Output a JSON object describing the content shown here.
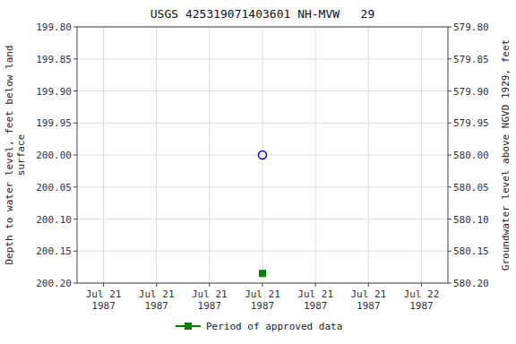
{
  "chart_data": {
    "type": "scatter",
    "title": "USGS 425319071403601 NH-MVW   29",
    "y_label": "Depth to water level, feet below land\nsurface",
    "y2_label": "Groundwater level above NGVD 1929, feet",
    "categories": [
      "Jul 21\n1987",
      "Jul 21\n1987",
      "Jul 21\n1987",
      "Jul 21\n1987",
      "Jul 21\n1987",
      "Jul 21\n1987",
      "Jul 22\n1987"
    ],
    "series": [
      {
        "color": "#0000bb",
        "marker": "circle-open",
        "line_style": "none",
        "values": [
          null,
          null,
          null,
          200.0,
          null,
          null,
          null
        ]
      },
      {
        "name": "Period of approved data",
        "color": "#008000",
        "marker": "square",
        "line_style": "none",
        "values": [
          null,
          null,
          null,
          200.185,
          null,
          null,
          null
        ]
      }
    ],
    "ylim": [
      200.2,
      199.8
    ],
    "yticks": [
      {
        "value": 199.8,
        "label": "199.80"
      },
      {
        "value": 199.85,
        "label": "199.85"
      },
      {
        "value": 199.9,
        "label": "199.90"
      },
      {
        "value": 199.95,
        "label": "199.95"
      },
      {
        "value": 200.0,
        "label": "200.00"
      },
      {
        "value": 200.05,
        "label": "200.05"
      },
      {
        "value": 200.1,
        "label": "200.10"
      },
      {
        "value": 200.15,
        "label": "200.15"
      },
      {
        "value": 200.2,
        "label": "200.20"
      }
    ],
    "y2lim": [
      580.2,
      579.8
    ],
    "y2ticks": [
      {
        "value": 580.2,
        "label": "580.20"
      },
      {
        "value": 580.15,
        "label": "580.15"
      },
      {
        "value": 580.1,
        "label": "580.10"
      },
      {
        "value": 580.05,
        "label": "580.05"
      },
      {
        "value": 580.0,
        "label": "580.00"
      },
      {
        "value": 579.95,
        "label": "579.95"
      },
      {
        "value": 579.9,
        "label": "579.90"
      },
      {
        "value": 579.85,
        "label": "579.85"
      },
      {
        "value": 579.8,
        "label": "579.80"
      }
    ],
    "grid": true,
    "legend": "bottom"
  }
}
